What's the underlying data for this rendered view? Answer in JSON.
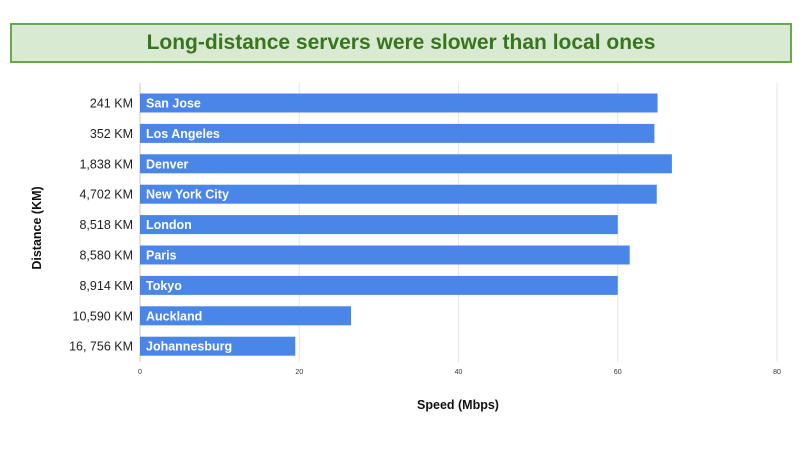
{
  "banner": {
    "title": "Long-distance servers were slower than local ones"
  },
  "chart_data": {
    "type": "bar",
    "orientation": "horizontal",
    "categories": [
      "241 KM",
      "352 KM",
      "1,838 KM",
      "4,702 KM",
      "8,518 KM",
      "8,580 KM",
      "8,914 KM",
      "10,590 KM",
      "16, 756 KM"
    ],
    "bar_labels": [
      "San Jose",
      "Los Angeles",
      "Denver",
      "New York City",
      "London",
      "Paris",
      "Tokyo",
      "Auckland",
      "Johannesburg"
    ],
    "values": [
      65,
      64.6,
      66.8,
      64.9,
      60,
      61.5,
      60,
      26.5,
      19.5
    ],
    "xlabel": "Speed (Mbps)",
    "ylabel": "Distance (KM)",
    "xlim": [
      0,
      80
    ],
    "xticks": [
      "0",
      "20",
      "40",
      "60",
      "80"
    ],
    "grid": true,
    "bar_color": "#4a86e8",
    "grid_color": "#e6e6e6"
  }
}
